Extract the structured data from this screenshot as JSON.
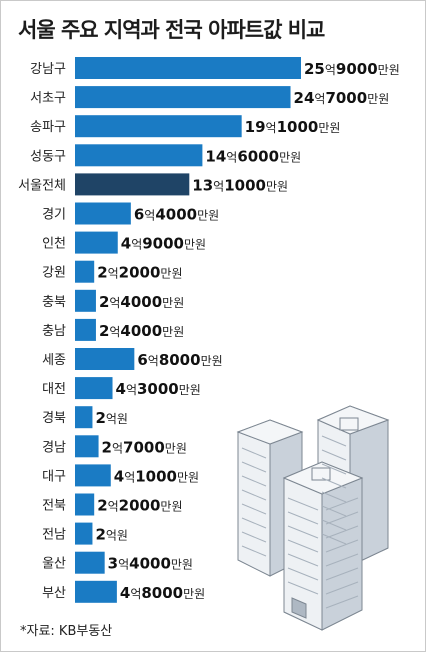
{
  "title": "서울 주요 지역과 전국 아파트값 비교",
  "source": "*자료: KB부동산",
  "colors": {
    "bar": "#1a7bc4",
    "highlight": "#1f4466",
    "background": "#ffffff",
    "building": "#cdd5de"
  },
  "icon": "apartment-buildings-illustration",
  "chart_data": {
    "type": "bar",
    "orientation": "horizontal",
    "unit": "만원",
    "categories": [
      "강남구",
      "서초구",
      "송파구",
      "성동구",
      "서울전체",
      "경기",
      "인천",
      "강원",
      "충북",
      "충남",
      "세종",
      "대전",
      "경북",
      "경남",
      "대구",
      "전북",
      "전남",
      "울산",
      "부산"
    ],
    "values": [
      259000,
      247000,
      191000,
      146000,
      131000,
      64000,
      49000,
      22000,
      24000,
      24000,
      68000,
      43000,
      20000,
      27000,
      41000,
      22000,
      20000,
      34000,
      48000
    ],
    "labels": [
      [
        [
          "25",
          "b"
        ],
        [
          "억",
          "u"
        ],
        [
          "9000",
          "b"
        ],
        [
          "만원",
          "u"
        ]
      ],
      [
        [
          "24",
          "b"
        ],
        [
          "억",
          "u"
        ],
        [
          "7000",
          "b"
        ],
        [
          "만원",
          "u"
        ]
      ],
      [
        [
          "19",
          "b"
        ],
        [
          "억",
          "u"
        ],
        [
          "1000",
          "b"
        ],
        [
          "만원",
          "u"
        ]
      ],
      [
        [
          "14",
          "b"
        ],
        [
          "억",
          "u"
        ],
        [
          "6000",
          "b"
        ],
        [
          "만원",
          "u"
        ]
      ],
      [
        [
          "13",
          "b"
        ],
        [
          "억",
          "u"
        ],
        [
          "1000",
          "b"
        ],
        [
          "만원",
          "u"
        ]
      ],
      [
        [
          "6",
          "b"
        ],
        [
          "억",
          "u"
        ],
        [
          "4000",
          "b"
        ],
        [
          "만원",
          "u"
        ]
      ],
      [
        [
          "4",
          "b"
        ],
        [
          "억",
          "u"
        ],
        [
          "9000",
          "b"
        ],
        [
          "만원",
          "u"
        ]
      ],
      [
        [
          "2",
          "b"
        ],
        [
          "억",
          "u"
        ],
        [
          "2000",
          "b"
        ],
        [
          "만원",
          "u"
        ]
      ],
      [
        [
          "2",
          "b"
        ],
        [
          "억",
          "u"
        ],
        [
          "4000",
          "b"
        ],
        [
          "만원",
          "u"
        ]
      ],
      [
        [
          "2",
          "b"
        ],
        [
          "억",
          "u"
        ],
        [
          "4000",
          "b"
        ],
        [
          "만원",
          "u"
        ]
      ],
      [
        [
          "6",
          "b"
        ],
        [
          "억",
          "u"
        ],
        [
          "8000",
          "b"
        ],
        [
          "만원",
          "u"
        ]
      ],
      [
        [
          "4",
          "b"
        ],
        [
          "억",
          "u"
        ],
        [
          "3000",
          "b"
        ],
        [
          "만원",
          "u"
        ]
      ],
      [
        [
          "2",
          "b"
        ],
        [
          "억원",
          "u"
        ]
      ],
      [
        [
          "2",
          "b"
        ],
        [
          "억",
          "u"
        ],
        [
          "7000",
          "b"
        ],
        [
          "만원",
          "u"
        ]
      ],
      [
        [
          "4",
          "b"
        ],
        [
          "억",
          "u"
        ],
        [
          "1000",
          "b"
        ],
        [
          "만원",
          "u"
        ]
      ],
      [
        [
          "2",
          "b"
        ],
        [
          "억",
          "u"
        ],
        [
          "2000",
          "b"
        ],
        [
          "만원",
          "u"
        ]
      ],
      [
        [
          "2",
          "b"
        ],
        [
          "억원",
          "u"
        ]
      ],
      [
        [
          "3",
          "b"
        ],
        [
          "억",
          "u"
        ],
        [
          "4000",
          "b"
        ],
        [
          "만원",
          "u"
        ]
      ],
      [
        [
          "4",
          "b"
        ],
        [
          "억",
          "u"
        ],
        [
          "8000",
          "b"
        ],
        [
          "만원",
          "u"
        ]
      ]
    ],
    "highlight_category": "서울전체",
    "xlim": [
      0,
      259000
    ],
    "title": "서울 주요 지역과 전국 아파트값 비교",
    "xlabel": "",
    "ylabel": "",
    "grid": false,
    "legend": "none"
  }
}
